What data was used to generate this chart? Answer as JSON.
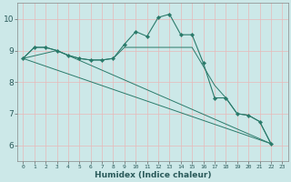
{
  "xlabel": "Humidex (Indice chaleur)",
  "xlim": [
    -0.5,
    23.5
  ],
  "ylim": [
    5.5,
    10.5
  ],
  "xticks": [
    0,
    1,
    2,
    3,
    4,
    5,
    6,
    7,
    8,
    9,
    10,
    11,
    12,
    13,
    14,
    15,
    16,
    17,
    18,
    19,
    20,
    21,
    22,
    23
  ],
  "yticks": [
    6,
    7,
    8,
    9,
    10
  ],
  "background_color": "#cce8e8",
  "grid_color": "#e8b8b8",
  "line_color": "#2a7a6a",
  "curve_x": [
    0,
    1,
    2,
    3,
    4,
    5,
    6,
    7,
    8,
    9,
    10,
    11,
    12,
    13,
    14,
    15,
    16,
    17,
    18,
    19,
    20,
    21,
    22
  ],
  "curve_y": [
    8.75,
    9.1,
    9.1,
    9.0,
    8.85,
    8.75,
    8.7,
    8.7,
    8.75,
    9.2,
    9.6,
    9.45,
    10.05,
    10.15,
    9.5,
    9.5,
    8.6,
    7.5,
    7.5,
    7.0,
    6.95,
    6.75,
    6.05
  ],
  "line2_x": [
    0,
    1,
    2,
    3,
    4,
    5,
    6,
    7,
    8,
    9,
    10,
    11,
    12,
    13,
    14,
    15,
    16,
    17,
    18,
    19,
    20,
    21,
    22
  ],
  "line2_y": [
    8.75,
    9.1,
    9.1,
    9.0,
    8.85,
    8.75,
    8.7,
    8.7,
    8.75,
    9.1,
    9.1,
    9.1,
    9.1,
    9.1,
    9.1,
    9.1,
    8.5,
    7.9,
    7.5,
    7.0,
    6.95,
    6.75,
    6.05
  ],
  "trend1_x": [
    0,
    22
  ],
  "trend1_y": [
    8.75,
    6.05
  ],
  "trend2_x": [
    0,
    3,
    22
  ],
  "trend2_y": [
    8.75,
    9.0,
    6.05
  ]
}
